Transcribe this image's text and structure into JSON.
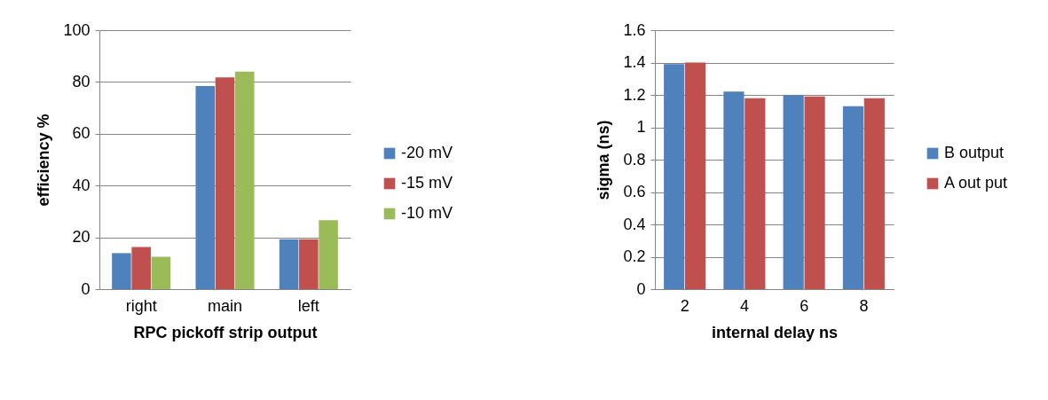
{
  "chart_data": [
    {
      "type": "bar",
      "xlabel": "RPC pickoff strip output",
      "ylabel": "efficiency %",
      "categories": [
        "right",
        "main",
        "left"
      ],
      "ylim": [
        0,
        100
      ],
      "yticks": [
        0,
        20,
        40,
        60,
        80,
        100
      ],
      "grid": "y",
      "legend": "right",
      "series": [
        {
          "name": "-20 mV",
          "color": "#4f81bd",
          "values": [
            13.9,
            78.4,
            19.3
          ]
        },
        {
          "name": "-15 mV",
          "color": "#c0504d",
          "values": [
            16.3,
            81.8,
            19.3
          ]
        },
        {
          "name": "-10 mV",
          "color": "#9bbb59",
          "values": [
            12.5,
            84,
            26.6
          ]
        }
      ]
    },
    {
      "type": "bar",
      "xlabel": "internal delay ns",
      "ylabel": "sigma (ns)",
      "categories": [
        "2",
        "4",
        "6",
        "8"
      ],
      "ylim": [
        0,
        1.6
      ],
      "yticks": [
        0,
        0.2,
        0.4,
        0.6,
        0.8,
        1,
        1.2,
        1.4,
        1.6
      ],
      "grid": "y",
      "legend": "right",
      "series": [
        {
          "name": "B output",
          "color": "#4f81bd",
          "values": [
            1.39,
            1.22,
            1.2,
            1.13
          ]
        },
        {
          "name": "A out put",
          "color": "#c0504d",
          "values": [
            1.4,
            1.18,
            1.19,
            1.18
          ]
        }
      ]
    }
  ]
}
